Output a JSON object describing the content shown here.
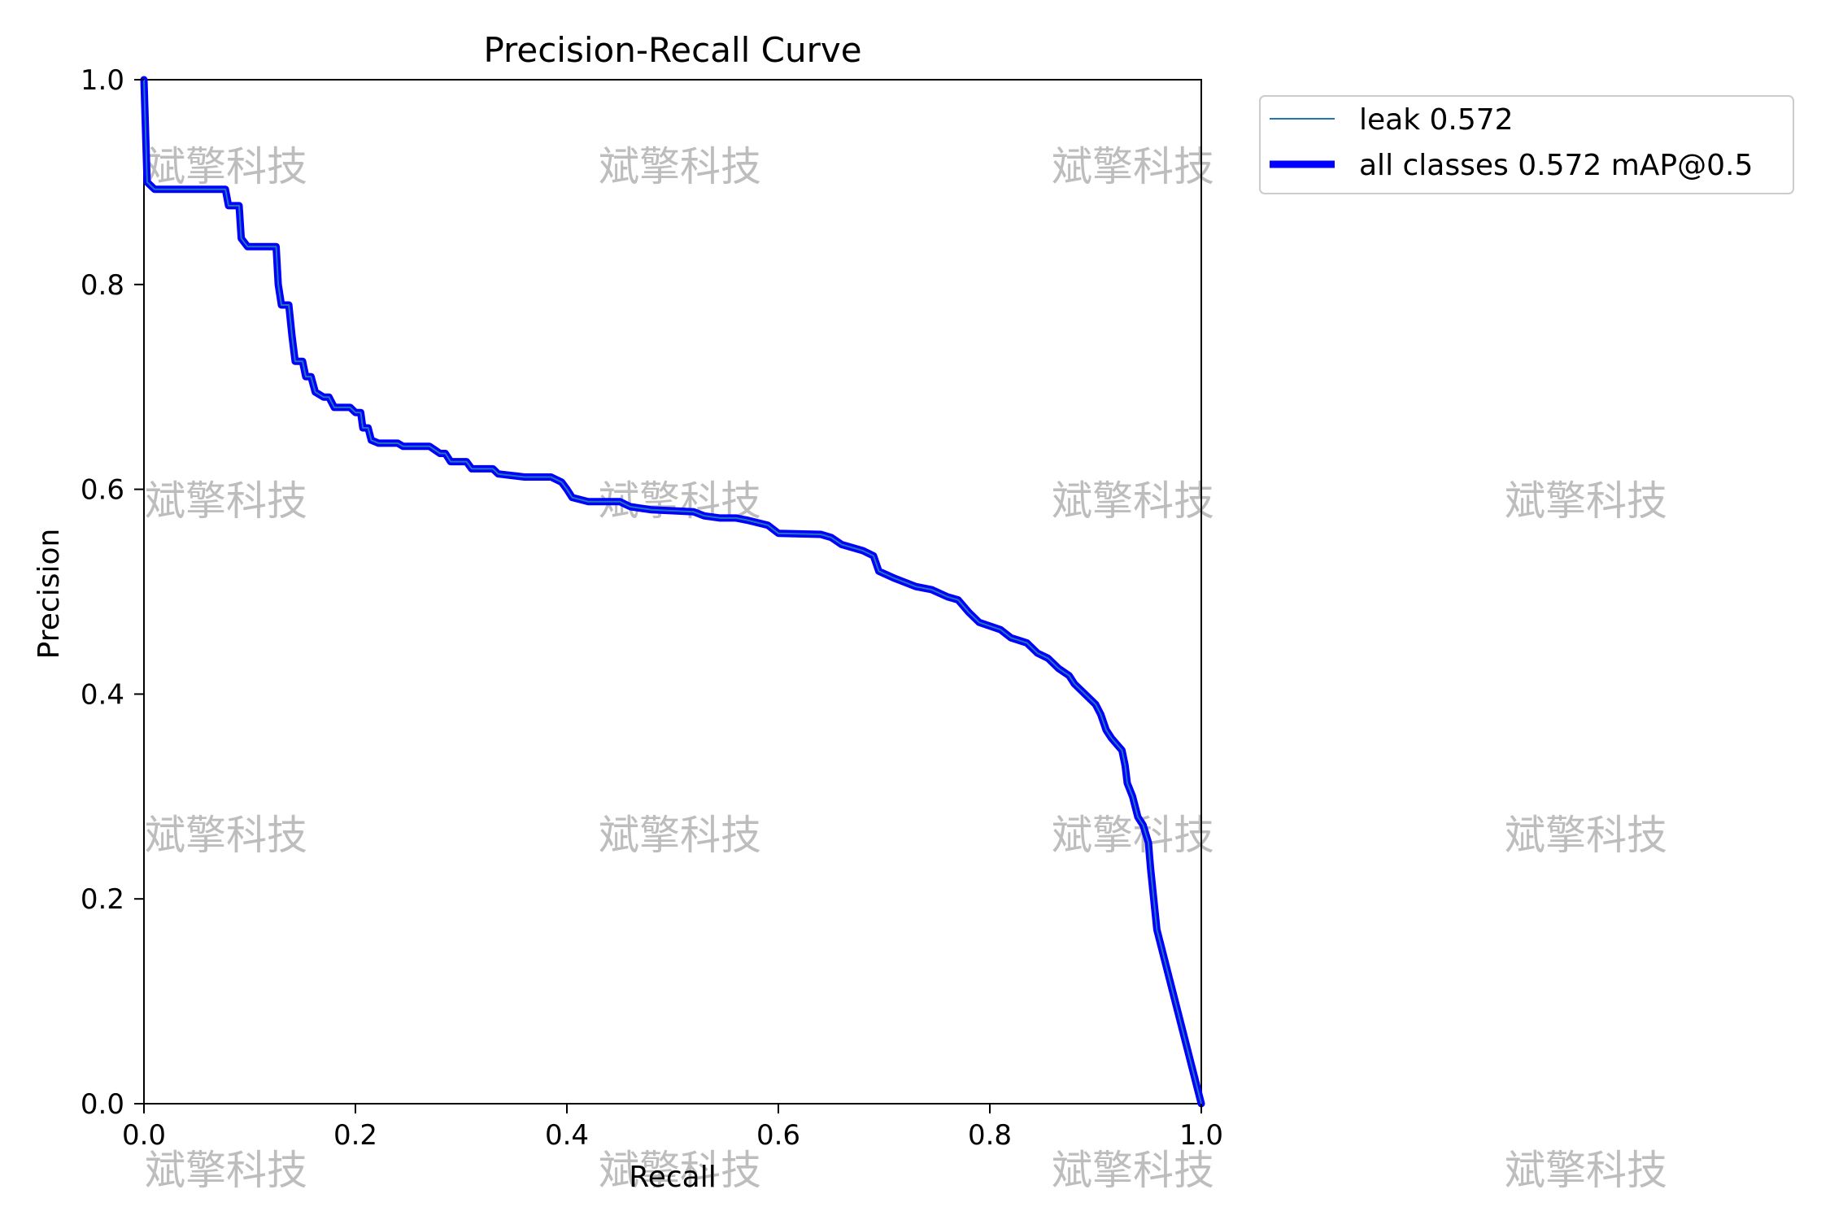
{
  "chart_data": {
    "type": "line",
    "title": "Precision-Recall Curve",
    "xlabel": "Recall",
    "ylabel": "Precision",
    "xlim": [
      0,
      1
    ],
    "ylim": [
      0,
      1
    ],
    "xticks": [
      "0.0",
      "0.2",
      "0.4",
      "0.6",
      "0.8",
      "1.0"
    ],
    "yticks": [
      "0.0",
      "0.2",
      "0.4",
      "0.6",
      "0.8",
      "1.0"
    ],
    "grid": false,
    "legend_position": "outside-top-right",
    "series": [
      {
        "name": "leak 0.572",
        "color": "#1f77b4",
        "points": [
          [
            0.0,
            1.0
          ],
          [
            0.003,
            0.9
          ],
          [
            0.01,
            0.893
          ],
          [
            0.077,
            0.893
          ],
          [
            0.08,
            0.877
          ],
          [
            0.09,
            0.877
          ],
          [
            0.092,
            0.845
          ],
          [
            0.098,
            0.837
          ],
          [
            0.125,
            0.837
          ],
          [
            0.127,
            0.8
          ],
          [
            0.13,
            0.78
          ],
          [
            0.137,
            0.78
          ],
          [
            0.14,
            0.75
          ],
          [
            0.143,
            0.725
          ],
          [
            0.15,
            0.725
          ],
          [
            0.153,
            0.71
          ],
          [
            0.158,
            0.71
          ],
          [
            0.162,
            0.695
          ],
          [
            0.17,
            0.69
          ],
          [
            0.175,
            0.69
          ],
          [
            0.18,
            0.68
          ],
          [
            0.195,
            0.68
          ],
          [
            0.2,
            0.675
          ],
          [
            0.205,
            0.675
          ],
          [
            0.207,
            0.66
          ],
          [
            0.212,
            0.66
          ],
          [
            0.215,
            0.648
          ],
          [
            0.222,
            0.645
          ],
          [
            0.24,
            0.645
          ],
          [
            0.245,
            0.642
          ],
          [
            0.27,
            0.642
          ],
          [
            0.28,
            0.635
          ],
          [
            0.285,
            0.635
          ],
          [
            0.29,
            0.627
          ],
          [
            0.305,
            0.627
          ],
          [
            0.31,
            0.62
          ],
          [
            0.33,
            0.62
          ],
          [
            0.335,
            0.615
          ],
          [
            0.36,
            0.612
          ],
          [
            0.385,
            0.612
          ],
          [
            0.395,
            0.607
          ],
          [
            0.4,
            0.6
          ],
          [
            0.405,
            0.592
          ],
          [
            0.42,
            0.588
          ],
          [
            0.45,
            0.588
          ],
          [
            0.46,
            0.583
          ],
          [
            0.48,
            0.58
          ],
          [
            0.52,
            0.578
          ],
          [
            0.53,
            0.574
          ],
          [
            0.545,
            0.572
          ],
          [
            0.56,
            0.572
          ],
          [
            0.57,
            0.57
          ],
          [
            0.59,
            0.565
          ],
          [
            0.6,
            0.557
          ],
          [
            0.64,
            0.556
          ],
          [
            0.65,
            0.553
          ],
          [
            0.66,
            0.546
          ],
          [
            0.68,
            0.54
          ],
          [
            0.69,
            0.535
          ],
          [
            0.695,
            0.52
          ],
          [
            0.71,
            0.513
          ],
          [
            0.73,
            0.505
          ],
          [
            0.745,
            0.502
          ],
          [
            0.76,
            0.495
          ],
          [
            0.77,
            0.492
          ],
          [
            0.78,
            0.48
          ],
          [
            0.79,
            0.47
          ],
          [
            0.81,
            0.463
          ],
          [
            0.82,
            0.455
          ],
          [
            0.835,
            0.45
          ],
          [
            0.845,
            0.44
          ],
          [
            0.855,
            0.435
          ],
          [
            0.865,
            0.425
          ],
          [
            0.875,
            0.418
          ],
          [
            0.88,
            0.41
          ],
          [
            0.89,
            0.4
          ],
          [
            0.9,
            0.39
          ],
          [
            0.905,
            0.38
          ],
          [
            0.91,
            0.365
          ],
          [
            0.915,
            0.357
          ],
          [
            0.925,
            0.345
          ],
          [
            0.928,
            0.33
          ],
          [
            0.93,
            0.313
          ],
          [
            0.935,
            0.3
          ],
          [
            0.94,
            0.28
          ],
          [
            0.945,
            0.272
          ],
          [
            0.95,
            0.255
          ],
          [
            0.952,
            0.23
          ],
          [
            0.955,
            0.2
          ],
          [
            0.958,
            0.17
          ],
          [
            1.0,
            0.0
          ]
        ]
      },
      {
        "name": "all classes 0.572 mAP@0.5",
        "color": "#0000ff",
        "same_as": 0
      }
    ]
  },
  "watermark": "斌擎科技"
}
